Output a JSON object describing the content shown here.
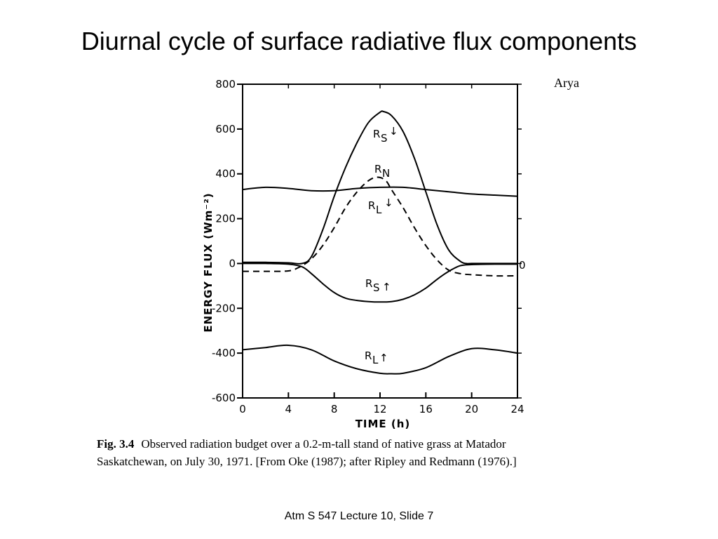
{
  "slide": {
    "title": "Diurnal cycle of surface radiative flux components",
    "credit": "Arya",
    "footer": "Atm S 547  Lecture 10, Slide 7"
  },
  "caption": {
    "figure_number": "Fig. 3.4",
    "line1": "Observed radiation budget over a 0.2-m-tall stand of native grass at Matador",
    "line2": "Saskatchewan, on July 30, 1971. [From Oke (1987); after Ripley and Redmann (1976).]"
  },
  "chart_data": {
    "type": "line",
    "title": "",
    "xlabel": "TIME (h)",
    "ylabel": "ENERGY FLUX (Wm⁻²)",
    "xlim": [
      0,
      24
    ],
    "ylim": [
      -600,
      800
    ],
    "xticks": [
      0,
      4,
      8,
      12,
      16,
      20,
      24
    ],
    "yticks": [
      800,
      600,
      400,
      200,
      0,
      -200,
      -400,
      -600
    ],
    "ytick_labels": [
      "800",
      "600",
      "400",
      "200",
      "0",
      "-200",
      "-400",
      "-600"
    ],
    "right_axis_label": "0",
    "grid": false,
    "series": [
      {
        "name": "Rs↓",
        "style": "solid",
        "x": [
          0,
          2,
          4,
          5.2,
          6,
          7,
          8,
          9,
          10,
          11,
          12,
          12.3,
          13,
          14,
          15,
          16,
          17,
          18,
          19,
          19.5,
          20,
          22,
          24
        ],
        "y": [
          5,
          5,
          3,
          0,
          30,
          150,
          300,
          430,
          540,
          630,
          675,
          678,
          660,
          590,
          470,
          320,
          170,
          60,
          10,
          0,
          0,
          0,
          0
        ]
      },
      {
        "name": "RN",
        "style": "dashed",
        "x": [
          0,
          2,
          4,
          5,
          6,
          7,
          8,
          9,
          10,
          11,
          11.8,
          12.5,
          13,
          14,
          15,
          16,
          17,
          18,
          19,
          20,
          22,
          24
        ],
        "y": [
          -35,
          -35,
          -33,
          -15,
          20,
          80,
          160,
          250,
          320,
          370,
          385,
          370,
          330,
          250,
          160,
          80,
          15,
          -30,
          -45,
          -50,
          -55,
          -55
        ]
      },
      {
        "name": "RL↓",
        "style": "solid",
        "x": [
          0,
          2,
          4,
          6,
          8,
          10,
          12,
          14,
          16,
          18,
          20,
          22,
          24
        ],
        "y": [
          330,
          340,
          335,
          325,
          325,
          335,
          340,
          340,
          330,
          320,
          310,
          305,
          300
        ]
      },
      {
        "name": "Rs↑",
        "style": "solid",
        "x": [
          0,
          2,
          4,
          5.2,
          6,
          7,
          8,
          9,
          10,
          11,
          12,
          13,
          14,
          15,
          16,
          17,
          18,
          19,
          20,
          22,
          24
        ],
        "y": [
          0,
          0,
          -3,
          -15,
          -45,
          -90,
          -130,
          -155,
          -165,
          -170,
          -172,
          -170,
          -160,
          -140,
          -110,
          -70,
          -35,
          -10,
          -5,
          -3,
          -3
        ]
      },
      {
        "name": "RL↑",
        "style": "solid",
        "x": [
          0,
          2,
          4,
          6,
          8,
          10,
          12,
          13,
          14,
          16,
          18,
          20,
          22,
          24
        ],
        "y": [
          -385,
          -375,
          -365,
          -385,
          -435,
          -470,
          -490,
          -492,
          -490,
          -465,
          -415,
          -380,
          -385,
          -400
        ]
      }
    ]
  }
}
